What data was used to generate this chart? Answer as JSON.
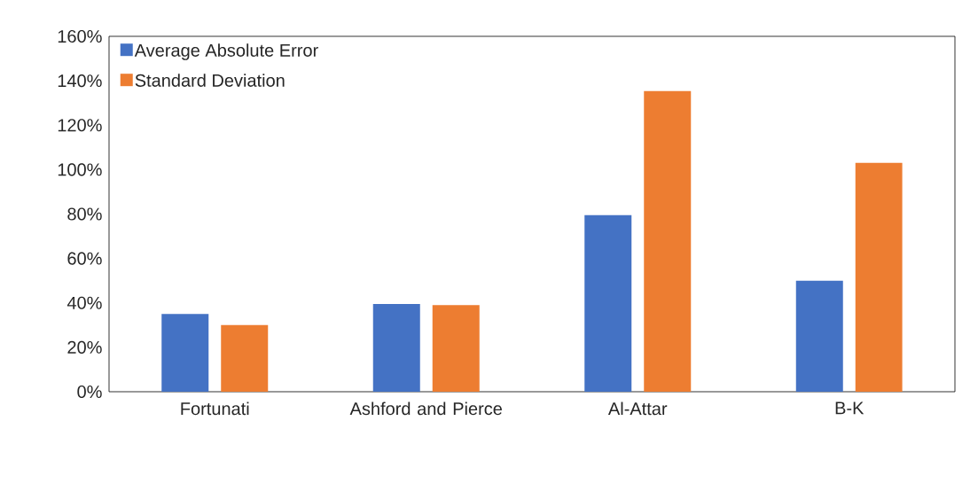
{
  "chart_data": {
    "type": "bar",
    "categories": [
      "Fortunati",
      "Ashford and Pierce",
      "Al-Attar",
      "B-K"
    ],
    "series": [
      {
        "name": "Average Absolute Error",
        "color": "#4472c4",
        "values": [
          35,
          39.5,
          79.5,
          50
        ]
      },
      {
        "name": "Standard Deviation",
        "color": "#ed7d31",
        "values": [
          30,
          39,
          135.5,
          103
        ]
      }
    ],
    "ylim": [
      0,
      160
    ],
    "yticks": [
      {
        "value": 0,
        "label": "0%"
      },
      {
        "value": 20,
        "label": "20%"
      },
      {
        "value": 40,
        "label": "40%"
      },
      {
        "value": 60,
        "label": "60%"
      },
      {
        "value": 80,
        "label": "80%"
      },
      {
        "value": 100,
        "label": "100%"
      },
      {
        "value": 120,
        "label": "120%"
      },
      {
        "value": 140,
        "label": "140%"
      },
      {
        "value": 160,
        "label": "160%"
      }
    ],
    "legend": "top left",
    "grid": false
  }
}
